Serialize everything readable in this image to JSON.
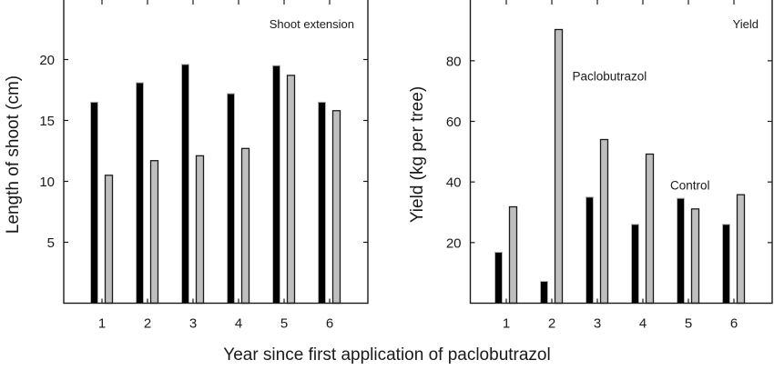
{
  "figure": {
    "shared_xlabel": "Year since first application of paclobutrazol"
  },
  "chart_data": [
    {
      "type": "bar",
      "title": "Shoot extension",
      "xlabel": "Year since first application of paclobutrazol",
      "ylabel": "Length of shoot (cm)",
      "categories": [
        "1",
        "2",
        "3",
        "4",
        "5",
        "6"
      ],
      "series": [
        {
          "name": "Control",
          "color": "#000000",
          "values": [
            16.5,
            18.1,
            19.6,
            17.2,
            19.5,
            16.5
          ]
        },
        {
          "name": "Paclobutrazol",
          "color": "#bfbfbf",
          "values": [
            10.5,
            11.7,
            12.1,
            12.7,
            18.7,
            15.8
          ]
        }
      ],
      "ylim": [
        0,
        25
      ],
      "yticks": [
        5,
        10,
        15,
        20
      ],
      "grid": false,
      "legend": "none"
    },
    {
      "type": "bar",
      "title": "Yield",
      "xlabel": "Year since first application of paclobutrazol",
      "ylabel": "Yield (kg per tree)",
      "categories": [
        "1",
        "2",
        "3",
        "4",
        "5",
        "6"
      ],
      "series": [
        {
          "name": "Control",
          "color": "#000000",
          "values": [
            16.8,
            7.2,
            35.0,
            26.0,
            34.6,
            26.0
          ]
        },
        {
          "name": "Paclobutrazol",
          "color": "#bfbfbf",
          "values": [
            31.8,
            90.3,
            54.0,
            49.2,
            31.1,
            35.8
          ]
        }
      ],
      "ylim": [
        0,
        100
      ],
      "yticks": [
        20,
        40,
        60,
        80
      ],
      "grid": false,
      "annotations": [
        {
          "text": "Paclobutrazol",
          "x": 2.45,
          "y": 75
        },
        {
          "text": "Control",
          "x": 4.6,
          "y": 39
        }
      ]
    }
  ]
}
